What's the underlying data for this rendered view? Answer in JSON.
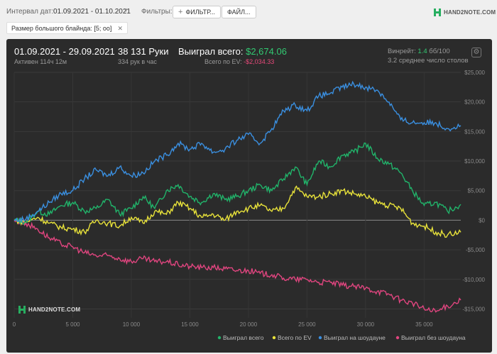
{
  "toolbar": {
    "date_label": "Интервал дат:",
    "date_value": "01.09.2021 - 01.10.2021",
    "filters_label": "Фильтры:",
    "filter_button": "ФИЛЬТР...",
    "file_button": "ФАЙЛ...",
    "brand": "HAND2NOTE.COM"
  },
  "active_filter": {
    "label": "Размер большого блайнда: [5; oo]",
    "close": "✕"
  },
  "stats": {
    "range": "01.09.2021 - 29.09.2021",
    "active": "Активен 114ч 12м",
    "hands": "38 131 Руки",
    "hands_per_hour": "334 рук в час",
    "won_label": "Выиграл всего:",
    "won_value": "$2,674.06",
    "ev_label": "Всего по EV:",
    "ev_value": "-$2,034.33",
    "winrate_label": "Винрейт:",
    "winrate_value": "1.4",
    "winrate_unit": "бб/100",
    "tables": "3.2 среднее число столов"
  },
  "watermark": "HAND2NOTE.COM",
  "colors": {
    "won": "#21b36a",
    "ev": "#e8e23a",
    "showdown": "#3a8fe0",
    "nonshowdown": "#e0457f"
  },
  "chart_data": {
    "type": "line",
    "x_ticks": [
      0,
      5000,
      10000,
      15000,
      20000,
      25000,
      30000,
      35000
    ],
    "x_tick_labels": [
      "0",
      "5 000",
      "10 000",
      "15 000",
      "20 000",
      "25 000",
      "30 000",
      "35 000"
    ],
    "xlim": [
      0,
      38131
    ],
    "y_ticks": [
      25000,
      20000,
      15000,
      10000,
      5000,
      0,
      -5000,
      -10000,
      -15000
    ],
    "y_tick_labels": [
      "$25,000",
      "$20,000",
      "$15,000",
      "$10,000",
      "$5,000",
      "$0",
      "-$5,000",
      "-$10,000",
      "-$15,000"
    ],
    "ylim": [
      -16500,
      25000
    ],
    "grid": true,
    "legend_position": "bottom-right",
    "x": [
      0,
      1000,
      2000,
      3000,
      4000,
      5000,
      6000,
      7000,
      8000,
      9000,
      10000,
      11000,
      12000,
      13000,
      14000,
      15000,
      16000,
      17000,
      18000,
      19000,
      20000,
      21000,
      22000,
      23000,
      24000,
      25000,
      26000,
      27000,
      28000,
      29000,
      30000,
      31000,
      32000,
      33000,
      34000,
      35000,
      36000,
      37000,
      38131
    ],
    "series": [
      {
        "name": "Выиграл всего",
        "values": [
          0,
          -300,
          1500,
          1000,
          2500,
          3000,
          1500,
          2000,
          3500,
          1000,
          2000,
          4000,
          2000,
          5000,
          6000,
          4000,
          3000,
          4500,
          3500,
          4000,
          5000,
          6000,
          5000,
          7000,
          9000,
          6000,
          10000,
          9000,
          11000,
          11500,
          13000,
          10500,
          9500,
          8000,
          5000,
          2500,
          3000,
          1500,
          2674
        ]
      },
      {
        "name": "Всего по EV",
        "values": [
          0,
          -300,
          500,
          -500,
          -1200,
          -1500,
          -2000,
          0,
          -500,
          -1000,
          500,
          -500,
          1500,
          1000,
          3000,
          2000,
          500,
          1000,
          0,
          1500,
          2000,
          2500,
          1500,
          2000,
          5500,
          4000,
          4000,
          4500,
          5000,
          4500,
          4000,
          3000,
          2500,
          2000,
          -500,
          -1000,
          -2000,
          -2500,
          -2034
        ]
      },
      {
        "name": "Выиграл на шоудауне",
        "values": [
          0,
          200,
          1500,
          3000,
          4500,
          5000,
          7000,
          8500,
          7500,
          9000,
          7500,
          8000,
          10000,
          11000,
          13000,
          12000,
          13000,
          11500,
          12000,
          13500,
          14500,
          13000,
          15500,
          18500,
          19500,
          18500,
          21000,
          21500,
          22500,
          23000,
          22500,
          22000,
          20000,
          17000,
          16500,
          16500,
          16500,
          15500,
          16000
        ]
      },
      {
        "name": "Выиграл без шоудауна",
        "values": [
          0,
          -500,
          -1500,
          -3000,
          -4000,
          -4500,
          -5500,
          -6000,
          -6000,
          -6500,
          -7000,
          -6500,
          -7000,
          -7000,
          -7500,
          -7800,
          -8000,
          -8000,
          -8200,
          -8500,
          -8500,
          -9000,
          -9200,
          -9800,
          -10000,
          -10000,
          -10500,
          -10500,
          -11000,
          -11200,
          -11500,
          -12000,
          -12500,
          -13500,
          -14000,
          -15000,
          -15500,
          -14500,
          -13500
        ]
      }
    ]
  }
}
